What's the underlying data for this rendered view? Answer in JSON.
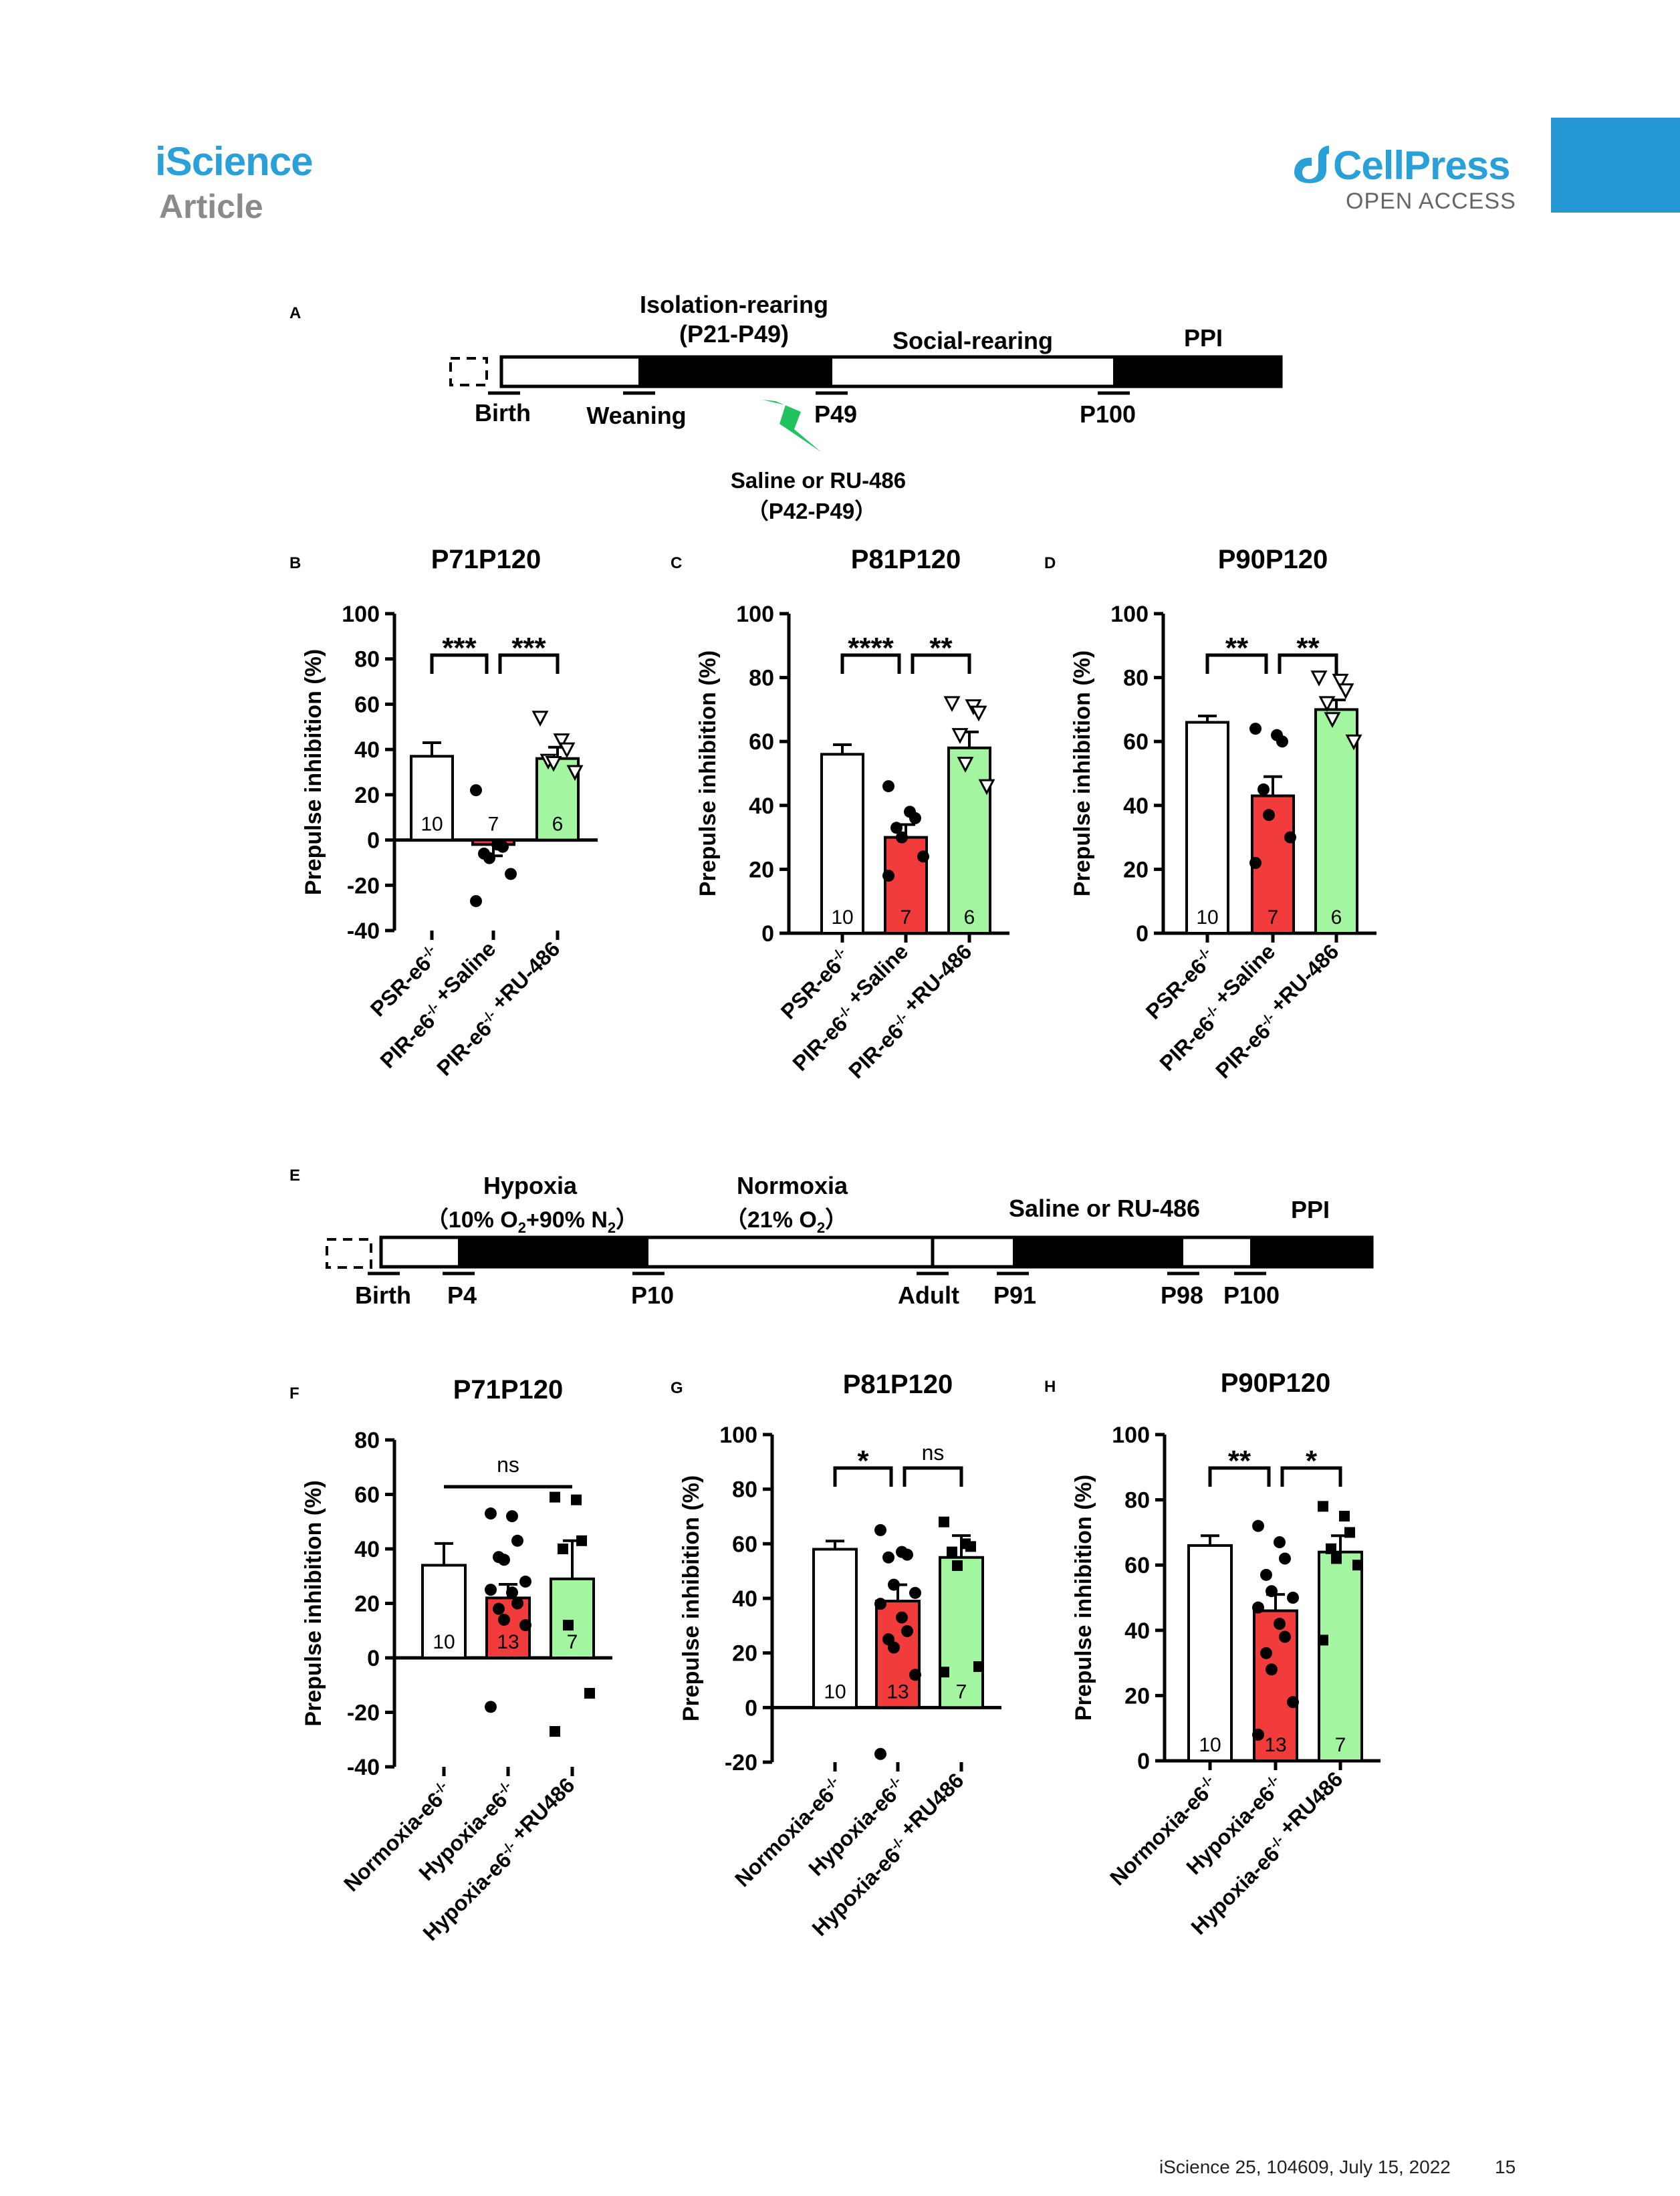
{
  "header": {
    "journal": "iScience",
    "section": "Article",
    "publisher": "CellPress",
    "access": "OPEN ACCESS"
  },
  "footer": {
    "citation": "iScience 25, 104609, July 15, 2022",
    "page": "15"
  },
  "timeline_a": {
    "letter": "A",
    "isolation": "Isolation-rearing",
    "isolation_range": "(P21-P49)",
    "social": "Social-rearing",
    "ppi": "PPI",
    "birth": "Birth",
    "weaning": "Weaning",
    "p49": "P49",
    "p100": "P100",
    "treatment": "Saline or RU-486",
    "treatment_range": "（P42-P49）"
  },
  "timeline_e": {
    "letter": "E",
    "hypoxia": "Hypoxia",
    "hypoxia_cond": "（10% O2+90% N2）",
    "normoxia": "Normoxia",
    "normoxia_cond": "（21% O2）",
    "treatment": "Saline or RU-486",
    "ppi": "PPI",
    "birth": "Birth",
    "p4": "P4",
    "p10": "P10",
    "adult": "Adult",
    "p91": "P91",
    "p98": "P98",
    "p100": "P100"
  },
  "colors": {
    "accent": "#2aa0d8",
    "saline_bar": "#f23b3b",
    "ru486_bar": "#a4f5a0",
    "control_bar": "#ffffff",
    "lightning": "#22c35e"
  },
  "chart_data": [
    {
      "letter": "B",
      "type": "bar",
      "title": "P71P120",
      "ylabel": "Prepulse inhibition (%)",
      "ylim": [
        -40,
        100
      ],
      "yticks": [
        "-40",
        "-20",
        "0",
        "20",
        "40",
        "60",
        "80",
        "100"
      ],
      "categories": [
        "PSR-e6-/-",
        "PIR-e6-/- +Saline",
        "PIR-e6-/- +RU-486"
      ],
      "values": [
        37,
        -2,
        36
      ],
      "errors": [
        6,
        5,
        5
      ],
      "n": [
        "10",
        "7",
        "6"
      ],
      "markers": [
        "none",
        "circle",
        "triangle"
      ],
      "points": [
        [],
        [
          22,
          -2,
          -3,
          -6,
          -8,
          -15,
          -27
        ],
        [
          54,
          44,
          40,
          35,
          34,
          30
        ]
      ],
      "comparisons": [
        {
          "from": 0,
          "to": 1,
          "label": "***"
        },
        {
          "from": 1,
          "to": 2,
          "label": "***"
        }
      ]
    },
    {
      "letter": "C",
      "type": "bar",
      "title": "P81P120",
      "ylabel": "Prepulse inhibition (%)",
      "ylim": [
        0,
        100
      ],
      "yticks": [
        "0",
        "20",
        "40",
        "60",
        "80",
        "100"
      ],
      "categories": [
        "PSR-e6-/-",
        "PIR-e6-/- +Saline",
        "PIR-e6-/- +RU-486"
      ],
      "values": [
        56,
        30,
        58
      ],
      "errors": [
        3,
        4,
        5
      ],
      "n": [
        "10",
        "7",
        "6"
      ],
      "markers": [
        "none",
        "circle",
        "triangle"
      ],
      "points": [
        [],
        [
          46,
          38,
          36,
          33,
          30,
          24,
          18
        ],
        [
          72,
          71,
          69,
          62,
          53,
          46
        ]
      ],
      "comparisons": [
        {
          "from": 0,
          "to": 1,
          "label": "****"
        },
        {
          "from": 1,
          "to": 2,
          "label": "**"
        }
      ]
    },
    {
      "letter": "D",
      "type": "bar",
      "title": "P90P120",
      "ylabel": "Prepulse inhibition (%)",
      "ylim": [
        0,
        100
      ],
      "yticks": [
        "0",
        "20",
        "40",
        "60",
        "80",
        "100"
      ],
      "categories": [
        "PSR-e6-/-",
        "PIR-e6-/- +Saline",
        "PIR-e6-/- +RU-486"
      ],
      "values": [
        66,
        43,
        70
      ],
      "errors": [
        2,
        6,
        3
      ],
      "n": [
        "10",
        "7",
        "6"
      ],
      "markers": [
        "none",
        "circle",
        "triangle"
      ],
      "points": [
        [],
        [
          64,
          62,
          60,
          45,
          37,
          30,
          22
        ],
        [
          80,
          79,
          76,
          72,
          67,
          60
        ]
      ],
      "comparisons": [
        {
          "from": 0,
          "to": 1,
          "label": "**"
        },
        {
          "from": 1,
          "to": 2,
          "label": "**"
        }
      ]
    },
    {
      "letter": "F",
      "type": "bar",
      "title": "P71P120",
      "ylabel": "Prepulse inhibition (%)",
      "ylim": [
        -40,
        80
      ],
      "yticks": [
        "-40",
        "-20",
        "0",
        "20",
        "40",
        "60",
        "80"
      ],
      "categories": [
        "Normoxia-e6-/-",
        "Hypoxia-e6-/-",
        "Hypoxia-e6-/- +RU486"
      ],
      "values": [
        34,
        22,
        29
      ],
      "errors": [
        8,
        5,
        14
      ],
      "n": [
        "10",
        "13",
        "7"
      ],
      "markers": [
        "none",
        "circle",
        "square"
      ],
      "points": [
        [],
        [
          53,
          52,
          43,
          37,
          36,
          28,
          25,
          24,
          20,
          18,
          14,
          12,
          -18
        ],
        [
          59,
          58,
          43,
          40,
          12,
          -13,
          -27
        ]
      ],
      "comparisons": [
        {
          "from": 0,
          "to": 2,
          "label": "ns"
        }
      ]
    },
    {
      "letter": "G",
      "type": "bar",
      "title": "P81P120",
      "ylabel": "Prepulse inhibition (%)",
      "ylim": [
        -20,
        100
      ],
      "yticks": [
        "-20",
        "0",
        "20",
        "40",
        "60",
        "80",
        "100"
      ],
      "categories": [
        "Normoxia-e6-/-",
        "Hypoxia-e6-/-",
        "Hypoxia-e6-/- +RU486"
      ],
      "values": [
        58,
        39,
        55
      ],
      "errors": [
        3,
        6,
        8
      ],
      "n": [
        "10",
        "13",
        "7"
      ],
      "markers": [
        "none",
        "circle",
        "square"
      ],
      "points": [
        [],
        [
          65,
          57,
          56,
          55,
          45,
          42,
          38,
          33,
          28,
          25,
          22,
          12,
          -17
        ],
        [
          68,
          60,
          59,
          57,
          52,
          15,
          13
        ]
      ],
      "comparisons": [
        {
          "from": 0,
          "to": 1,
          "label": "*"
        },
        {
          "from": 1,
          "to": 2,
          "label": "ns"
        }
      ]
    },
    {
      "letter": "H",
      "type": "bar",
      "title": "P90P120",
      "ylabel": "Prepulse inhibition (%)",
      "ylim": [
        0,
        100
      ],
      "yticks": [
        "0",
        "20",
        "40",
        "60",
        "80",
        "100"
      ],
      "categories": [
        "Normoxia-e6-/-",
        "Hypoxia-e6-/-",
        "Hypoxia-e6-/- +RU486"
      ],
      "values": [
        66,
        46,
        64
      ],
      "errors": [
        3,
        5,
        5
      ],
      "n": [
        "10",
        "13",
        "7"
      ],
      "markers": [
        "none",
        "circle",
        "square"
      ],
      "points": [
        [],
        [
          72,
          67,
          62,
          57,
          52,
          50,
          47,
          42,
          38,
          33,
          28,
          18,
          8
        ],
        [
          78,
          75,
          70,
          65,
          62,
          60,
          37
        ]
      ],
      "comparisons": [
        {
          "from": 0,
          "to": 1,
          "label": "**"
        },
        {
          "from": 1,
          "to": 2,
          "label": "*"
        }
      ]
    }
  ]
}
